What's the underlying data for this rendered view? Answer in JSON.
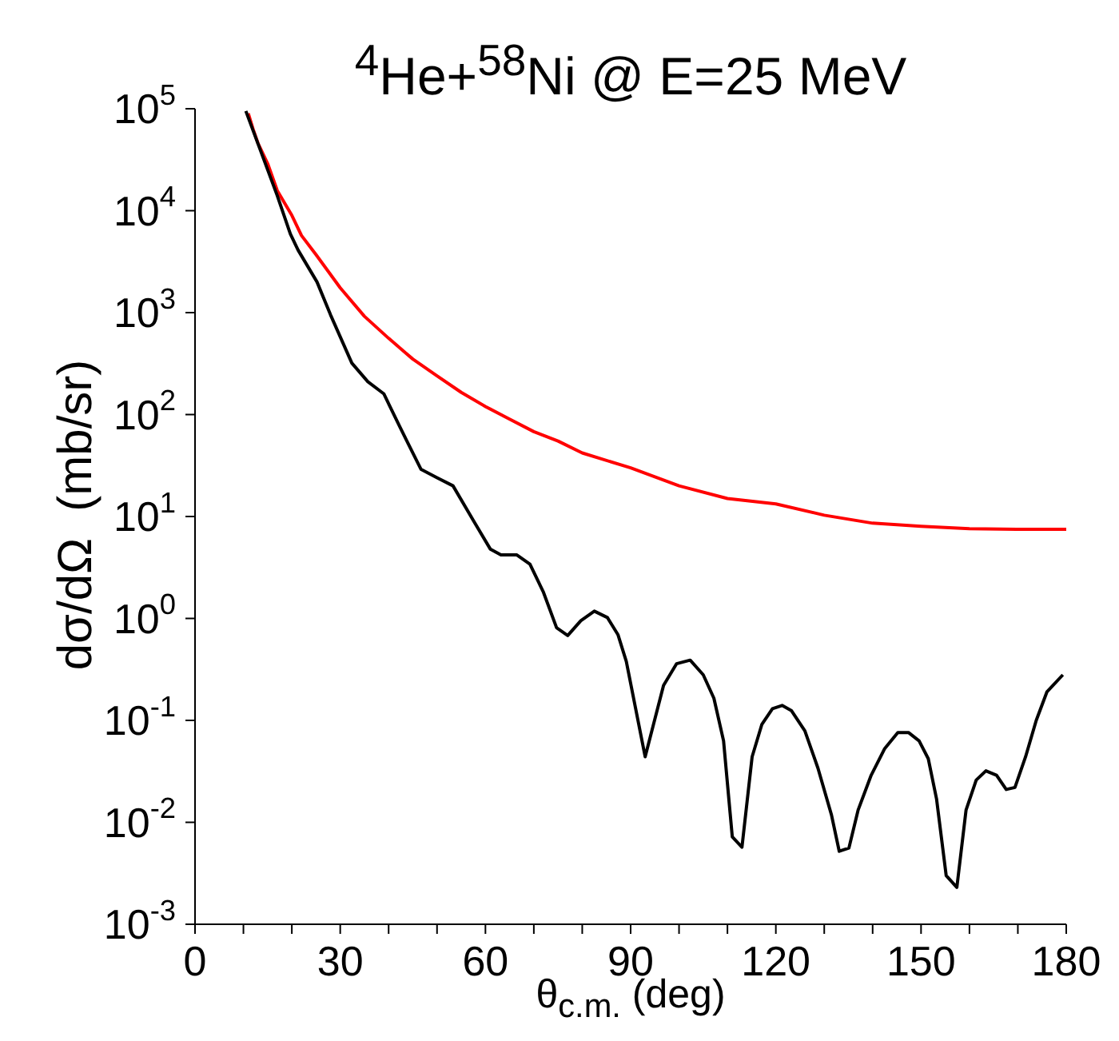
{
  "chart_data": {
    "type": "line",
    "title": "$^{4}$He+$^{58}$Ni @ E=25 MeV",
    "xlabel": "θ$_{c.m.}$ (deg)",
    "ylabel": "dσ/dΩ  (mb/sr)",
    "log": "y",
    "marker": "none",
    "line_style": "solid",
    "xlim": [
      0,
      180
    ],
    "xticks": [
      0,
      {
        "value": 10,
        "label": null
      },
      {
        "value": 20,
        "label": null
      },
      30,
      {
        "value": 40,
        "label": null
      },
      {
        "value": 50,
        "label": null
      },
      60,
      {
        "value": 70,
        "label": null
      },
      {
        "value": 80,
        "label": null
      },
      90,
      {
        "value": 100,
        "label": null
      },
      {
        "value": 110,
        "label": null
      },
      120,
      {
        "value": 130,
        "label": null
      },
      {
        "value": 140,
        "label": null
      },
      150,
      {
        "value": 160,
        "label": null
      },
      {
        "value": 170,
        "label": null
      },
      180
    ],
    "ylim": [
      0.001,
      100000
    ],
    "yticks": [
      {
        "value": 0.001,
        "label": "10$^{-3}$"
      },
      {
        "value": 0.01,
        "label": "10$^{-2}$"
      },
      {
        "value": 0.1,
        "label": "10$^{-1}$"
      },
      {
        "value": 1,
        "label": "10$^{0}$"
      },
      {
        "value": 10,
        "label": "10$^{1}$"
      },
      {
        "value": 100,
        "label": "10$^{2}$"
      },
      {
        "value": 1000,
        "label": "10$^{3}$"
      },
      {
        "value": 10000,
        "label": "10$^{4}$"
      },
      {
        "value": 100000,
        "label": "10$^{5}$"
      }
    ],
    "series": [
      {
        "color": "#ff0000",
        "x": [
          11,
          12,
          13,
          15,
          17,
          20,
          22,
          25,
          30,
          35,
          40,
          45,
          50,
          55,
          60,
          65,
          70,
          75,
          80,
          90,
          100,
          110,
          120,
          130,
          140,
          150,
          160,
          170,
          180
        ],
        "values": [
          90000,
          63000,
          46000,
          29000,
          15700,
          9000,
          5700,
          3700,
          1750,
          920,
          560,
          350,
          240,
          165,
          120,
          90,
          68,
          55,
          42,
          30,
          20,
          15,
          13.3,
          10.3,
          8.6,
          8,
          7.6,
          7.5,
          7.5
        ]
      },
      {
        "color": "#000000",
        "x": [
          10.5,
          17,
          19.7,
          21.3,
          25.2,
          28,
          32.4,
          35.7,
          39,
          42.3,
          46.7,
          50,
          53.3,
          57.7,
          61,
          63.2,
          66.5,
          69.2,
          72,
          74.7,
          77,
          79.7,
          82.5,
          85.2,
          87.4,
          89.1,
          93,
          96.8,
          99.5,
          102.3,
          105,
          107.2,
          109.2,
          111,
          113,
          115.1,
          117.1,
          119.3,
          121.3,
          123.2,
          126,
          128.7,
          131.5,
          133.1,
          135.1,
          137,
          139.7,
          142.5,
          145.2,
          147.4,
          149.6,
          151.5,
          153.2,
          155.2,
          157.4,
          159.3,
          161.4,
          163.4,
          165.6,
          167.6,
          169.4,
          171.6,
          173.8,
          176,
          179.3
        ],
        "values": [
          95000,
          14000,
          5900,
          4100,
          2000,
          950,
          320,
          210,
          160,
          76,
          29,
          24,
          20,
          8.8,
          4.8,
          4.2,
          4.2,
          3.4,
          1.8,
          0.81,
          0.68,
          0.95,
          1.18,
          1.02,
          0.69,
          0.38,
          0.044,
          0.22,
          0.36,
          0.39,
          0.28,
          0.165,
          0.063,
          0.0072,
          0.0057,
          0.044,
          0.091,
          0.13,
          0.14,
          0.125,
          0.079,
          0.034,
          0.0118,
          0.0052,
          0.0056,
          0.0132,
          0.029,
          0.053,
          0.076,
          0.076,
          0.063,
          0.042,
          0.017,
          0.003,
          0.0023,
          0.0132,
          0.026,
          0.032,
          0.029,
          0.021,
          0.022,
          0.044,
          0.1,
          0.19,
          0.28
        ]
      }
    ]
  }
}
